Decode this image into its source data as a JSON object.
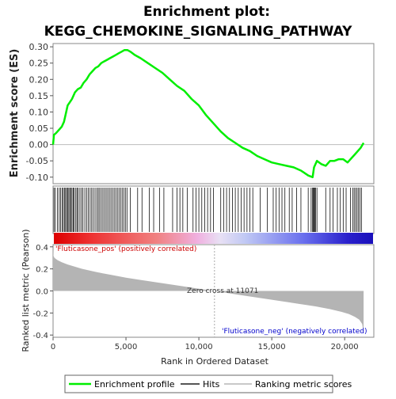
{
  "figure": {
    "title_line1": "Enrichment plot:",
    "title_line2": "KEGG_CHEMOKINE_SIGNALING_PATHWAY",
    "es_ylabel": "Enrichment score (ES)",
    "metric_ylabel": "Ranked list metric (Pearson)",
    "xlabel": "Rank in Ordered Dataset",
    "pos_label": "'Fluticasone_pos' (positively correlated)",
    "neg_label": "'Fluticasone_neg' (negatively correlated)",
    "zero_cross_label": "Zero cross at 11071",
    "legend": [
      {
        "label": "Enrichment profile",
        "color": "#00ee00"
      },
      {
        "label": "Hits",
        "color": "#555555"
      },
      {
        "label": "Ranking metric scores",
        "color": "#c8c8c8"
      }
    ],
    "colors": {
      "profile": "#00ee00",
      "metric": "#b4b4b4",
      "pos_text": "#cc0000",
      "neg_text": "#0000cc",
      "zero_line": "#aaaaaa"
    }
  },
  "chart_data": [
    {
      "type": "line",
      "name": "enrichment_profile",
      "xlim": [
        0,
        22000
      ],
      "ylim": [
        -0.12,
        0.31
      ],
      "xticks": [
        0,
        5000,
        10000,
        15000,
        20000
      ],
      "xtick_labels": [
        "0",
        "5,000",
        "10,000",
        "15,000",
        "20,000"
      ],
      "yticks": [
        -0.1,
        -0.05,
        0.0,
        0.05,
        0.1,
        0.15,
        0.2,
        0.25,
        0.3
      ],
      "ytick_labels": [
        "-0.10",
        "-0.05",
        "0.00",
        "0.05",
        "0.10",
        "0.15",
        "0.20",
        "0.25",
        "0.30"
      ],
      "grid": false,
      "x": [
        0,
        60,
        200,
        400,
        600,
        750,
        900,
        1000,
        1150,
        1300,
        1500,
        1700,
        1900,
        2100,
        2300,
        2500,
        2700,
        2900,
        3100,
        3300,
        3500,
        3700,
        3900,
        4100,
        4300,
        4500,
        4700,
        4900,
        5100,
        5300,
        5600,
        6000,
        6500,
        7000,
        7500,
        8000,
        8500,
        9000,
        9500,
        10000,
        10500,
        11000,
        11500,
        12000,
        12500,
        13000,
        13500,
        14000,
        14500,
        15000,
        15500,
        16000,
        16500,
        17000,
        17500,
        17800,
        17900,
        18100,
        18400,
        18700,
        19000,
        19300,
        19600,
        19900,
        20200,
        20500,
        20700,
        20900,
        21100,
        21300
      ],
      "y": [
        0.0,
        0.03,
        0.035,
        0.045,
        0.055,
        0.07,
        0.1,
        0.12,
        0.13,
        0.14,
        0.16,
        0.17,
        0.175,
        0.19,
        0.2,
        0.215,
        0.225,
        0.235,
        0.24,
        0.25,
        0.255,
        0.26,
        0.265,
        0.27,
        0.275,
        0.28,
        0.285,
        0.29,
        0.29,
        0.285,
        0.275,
        0.265,
        0.25,
        0.235,
        0.22,
        0.2,
        0.18,
        0.165,
        0.14,
        0.12,
        0.09,
        0.065,
        0.04,
        0.02,
        0.005,
        -0.01,
        -0.02,
        -0.035,
        -0.045,
        -0.055,
        -0.06,
        -0.065,
        -0.07,
        -0.08,
        -0.095,
        -0.1,
        -0.07,
        -0.05,
        -0.06,
        -0.065,
        -0.05,
        -0.05,
        -0.045,
        -0.045,
        -0.055,
        -0.04,
        -0.03,
        -0.02,
        -0.01,
        0.005
      ]
    },
    {
      "type": "area",
      "name": "ranked_list_metric",
      "xlim": [
        0,
        22000
      ],
      "ylim": [
        -0.42,
        0.42
      ],
      "xticks": [
        0,
        5000,
        10000,
        15000,
        20000
      ],
      "xtick_labels": [
        "0",
        "5,000",
        "10,000",
        "15,000",
        "20,000"
      ],
      "yticks": [
        -0.4,
        -0.2,
        0.0,
        0.2,
        0.4
      ],
      "ytick_labels": [
        "-0.4",
        "-0.2",
        "0.0",
        "0.2",
        "0.4"
      ],
      "zero_cross": 11071,
      "x": [
        0,
        20,
        100,
        300,
        600,
        1000,
        1500,
        2000,
        3000,
        4000,
        5000,
        6000,
        7000,
        8000,
        9000,
        10000,
        11071,
        12000,
        13000,
        14000,
        15000,
        16000,
        17000,
        18000,
        19000,
        19800,
        20300,
        20700,
        21000,
        21200,
        21300
      ],
      "y": [
        0.38,
        0.32,
        0.3,
        0.28,
        0.26,
        0.24,
        0.22,
        0.2,
        0.17,
        0.145,
        0.12,
        0.1,
        0.08,
        0.06,
        0.04,
        0.02,
        0.0,
        -0.02,
        -0.04,
        -0.06,
        -0.08,
        -0.1,
        -0.12,
        -0.14,
        -0.165,
        -0.19,
        -0.21,
        -0.235,
        -0.26,
        -0.3,
        -0.38
      ]
    },
    {
      "type": "scatter",
      "name": "hits",
      "x": [
        60,
        150,
        300,
        420,
        520,
        620,
        700,
        780,
        860,
        930,
        1000,
        1080,
        1150,
        1230,
        1300,
        1380,
        1450,
        1560,
        1640,
        1720,
        1840,
        1950,
        2050,
        2180,
        2300,
        2420,
        2540,
        2650,
        2760,
        2880,
        3000,
        3100,
        3200,
        3310,
        3420,
        3530,
        3640,
        3750,
        3860,
        3970,
        4080,
        4190,
        4300,
        4410,
        4520,
        4630,
        4740,
        4850,
        4960,
        5070,
        5300,
        5800,
        6100,
        6600,
        6900,
        7300,
        7600,
        8200,
        8500,
        8700,
        8900,
        9200,
        9600,
        9800,
        10000,
        10200,
        10400,
        10600,
        10800,
        11000,
        11500,
        11700,
        11900,
        12100,
        12300,
        12500,
        12700,
        12900,
        13100,
        13300,
        13500,
        13700,
        14200,
        14700,
        15100,
        15300,
        15500,
        15700,
        15900,
        16200,
        16400,
        16700,
        17000,
        17500,
        17700,
        17800,
        17850,
        17900,
        17950,
        18000,
        18100,
        18700,
        19000,
        19200,
        19500,
        19700,
        19900,
        20100,
        20400,
        20550,
        20650,
        20750,
        20850,
        20950,
        21050,
        21150
      ]
    }
  ]
}
